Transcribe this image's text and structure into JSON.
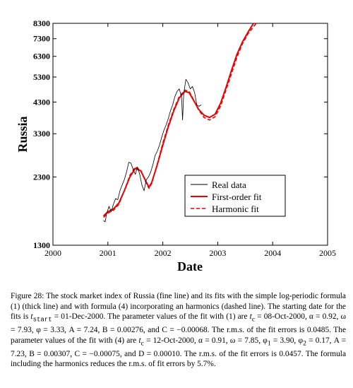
{
  "chart_data": {
    "type": "line",
    "title": "",
    "xlabel": "Date",
    "ylabel": "Russia",
    "xlim": [
      2000,
      2005
    ],
    "ylim": [
      1300,
      8300
    ],
    "y_scale": "log",
    "x_ticks": [
      "2000",
      "2001",
      "2002",
      "2003",
      "2004",
      "2005"
    ],
    "y_ticks": [
      "1300",
      "2300",
      "3300",
      "4300",
      "5300",
      "6300",
      "7300",
      "8300"
    ],
    "legend_position": "center-right",
    "grid": false,
    "series": [
      {
        "name": "Real data",
        "style": "thin-black",
        "x": [
          2000.92,
          2000.95,
          2000.98,
          2001.02,
          2001.06,
          2001.1,
          2001.14,
          2001.18,
          2001.22,
          2001.26,
          2001.3,
          2001.34,
          2001.38,
          2001.42,
          2001.46,
          2001.5,
          2001.54,
          2001.58,
          2001.62,
          2001.66,
          2001.7,
          2001.74,
          2001.78,
          2001.82,
          2001.86,
          2001.9,
          2001.94,
          2001.98,
          2002.02,
          2002.06,
          2002.1,
          2002.14,
          2002.18,
          2002.22,
          2002.26,
          2002.3,
          2002.34,
          2002.36,
          2002.38,
          2002.42,
          2002.46,
          2002.5,
          2002.54,
          2002.58,
          2002.62,
          2002.66,
          2002.7
        ],
        "y": [
          1600,
          1580,
          1700,
          1800,
          1720,
          1830,
          1920,
          1900,
          2050,
          2150,
          2250,
          2400,
          2600,
          2580,
          2450,
          2350,
          2500,
          2350,
          2150,
          2050,
          2250,
          2300,
          2400,
          2550,
          2750,
          2850,
          3000,
          3200,
          3400,
          3550,
          3750,
          4000,
          4200,
          4500,
          4700,
          4800,
          4500,
          3700,
          4600,
          5200,
          5050,
          4800,
          4900,
          4650,
          4200,
          4150,
          4200
        ]
      },
      {
        "name": "First-order fit",
        "style": "thick-red",
        "x": [
          2000.92,
          2001.0,
          2001.1,
          2001.2,
          2001.3,
          2001.4,
          2001.5,
          2001.6,
          2001.7,
          2001.75,
          2001.8,
          2001.9,
          2002.0,
          2002.1,
          2002.2,
          2002.3,
          2002.4,
          2002.48,
          2002.55,
          2002.65,
          2002.75,
          2002.85,
          2002.95,
          2003.05,
          2003.15,
          2003.25,
          2003.35,
          2003.45,
          2003.55,
          2003.65
        ],
        "y": [
          1660,
          1720,
          1760,
          1850,
          2050,
          2300,
          2470,
          2420,
          2200,
          2110,
          2200,
          2550,
          3000,
          3500,
          4000,
          4450,
          4700,
          4650,
          4400,
          4050,
          3850,
          3780,
          3880,
          4250,
          4850,
          5600,
          6400,
          7100,
          7700,
          8300
        ]
      },
      {
        "name": "Harmonic fit",
        "style": "dashed-red",
        "x": [
          2000.92,
          2001.0,
          2001.1,
          2001.2,
          2001.3,
          2001.4,
          2001.5,
          2001.6,
          2001.7,
          2001.75,
          2001.8,
          2001.9,
          2002.0,
          2002.1,
          2002.2,
          2002.3,
          2002.4,
          2002.48,
          2002.55,
          2002.65,
          2002.75,
          2002.85,
          2002.95,
          2003.05,
          2003.15,
          2003.25,
          2003.35,
          2003.45,
          2003.55,
          2003.7
        ],
        "y": [
          1640,
          1700,
          1740,
          1830,
          2050,
          2330,
          2500,
          2430,
          2180,
          2090,
          2180,
          2560,
          3050,
          3550,
          4050,
          4500,
          4750,
          4700,
          4420,
          4030,
          3780,
          3700,
          3800,
          4150,
          4750,
          5450,
          6250,
          7000,
          7600,
          8300
        ]
      }
    ],
    "colors": {
      "real": "#000000",
      "fit": "#ee0000"
    }
  },
  "caption": {
    "p1": "Figure 28: The stock market index of Russia (fine line) and its fits with the simple log-periodic formula (1) (thick line) and with formula (4) incorporating an harmonics (dashed line). The starting date for the fits is ",
    "tstart_sym": "t",
    "tstart_sub": "start",
    "p2": " = 01-Dec-2000. The parameter values of the fit with (1) are ",
    "p3": " = 08-Oct-2000, α = 0.92, ω = 7.93, φ = 3.33, A = 7.24, B = 0.00276, and C = −0.00068. The r.m.s. of the fit errors is 0.0485. The parameter values of the fit with (4) are ",
    "p4": " = 12-Oct-2000, α = 0.91, ω = 7.85, φ",
    "p5": " = 3.90, φ",
    "p6": " = 0.17, A = 7.23, B = 0.00307, C = −0.00075, and D = 0.00010. The r.m.s. of the fit errors is 0.0457. The formula including the harmonics reduces the r.m.s. of fit errors by 5.7%.",
    "tc_sym": "t",
    "tc_sub": "c",
    "phi1_sub": "1",
    "phi2_sub": "2"
  }
}
